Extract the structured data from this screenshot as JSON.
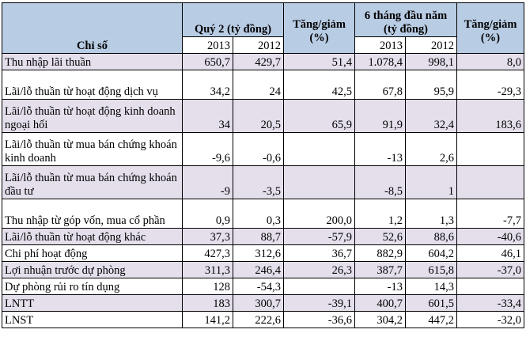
{
  "header": {
    "indicator": "Chỉ số",
    "q2": "Quý 2 (tỷ đồng)",
    "change": "Tăng/giảm (%)",
    "h6": "6 tháng đầu năm (tỷ đồng)",
    "years": [
      "2013",
      "2012",
      "2013",
      "2012"
    ]
  },
  "colors": {
    "header": "#b8cce4",
    "alt_row": "#e5dfec"
  },
  "rows": [
    {
      "label": "Thu nhập lãi thuần",
      "values": [
        "650,7",
        "429,7",
        "51,4",
        "1.078,4",
        "998,1",
        "8,0"
      ]
    },
    {
      "label": "Lãi/lỗ thuần từ hoạt động dịch vụ",
      "values": [
        "34,2",
        "24",
        "42,5",
        "67,8",
        "95,9",
        "-29,3"
      ]
    },
    {
      "label": "Lãi/lỗ thuần từ hoạt động kinh doanh ngoại hối",
      "values": [
        "34",
        "20,5",
        "65,9",
        "91,9",
        "32,4",
        "183,6"
      ]
    },
    {
      "label": "Lãi/lỗ thuần từ mua bán chứng khoán kinh doanh",
      "values": [
        "-9,6",
        "-0,6",
        "",
        "-13",
        "2,6",
        ""
      ]
    },
    {
      "label": "Lãi/lỗ thuần từ mua bán chứng khoán đầu tư",
      "values": [
        "-9",
        "-3,5",
        "",
        "-8,5",
        "1",
        ""
      ]
    },
    {
      "label": "Thu nhập từ góp vốn, mua cổ phần",
      "values": [
        "0,9",
        "0,3",
        "200,0",
        "1,2",
        "1,3",
        "-7,7"
      ]
    },
    {
      "label": "Lãi/lỗ thuần từ hoạt động khác",
      "values": [
        "37,3",
        "88,7",
        "-57,9",
        "52,6",
        "88,6",
        "-40,6"
      ]
    },
    {
      "label": "Chi phí hoạt động",
      "values": [
        "427,3",
        "312,6",
        "36,7",
        "882,9",
        "604,2",
        "46,1"
      ]
    },
    {
      "label": "Lợi nhuận trước dự phòng",
      "values": [
        "311,3",
        "246,4",
        "26,3",
        "387,7",
        "615,8",
        "-37,0"
      ]
    },
    {
      "label": "Dự phòng rủi ro tín dụng",
      "values": [
        "128",
        "-54,3",
        "",
        "-13",
        "14,3",
        ""
      ]
    },
    {
      "label": "LNTT",
      "values": [
        "183",
        "300,7",
        "-39,1",
        "400,7",
        "601,5",
        "-33,4"
      ]
    },
    {
      "label": "LNST",
      "values": [
        "141,2",
        "222,6",
        "-36,6",
        "304,2",
        "447,2",
        "-32,0"
      ]
    }
  ]
}
